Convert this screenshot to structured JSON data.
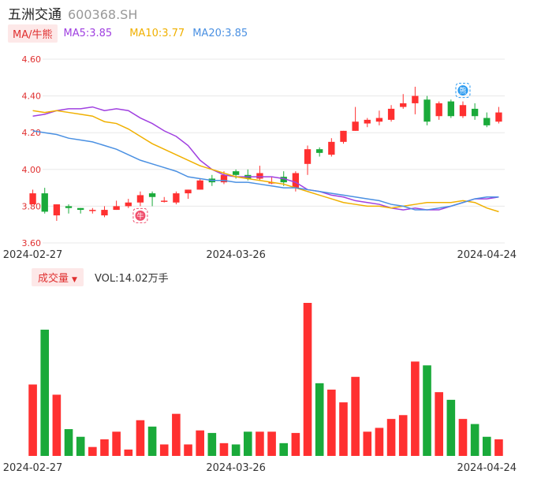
{
  "header": {
    "name": "五洲交通",
    "code": "600368.SH"
  },
  "ma_bar": {
    "toggle_label": "MA/牛熊",
    "ma5": "MA5:3.85",
    "ma10": "MA10:3.77",
    "ma20": "MA20:3.85"
  },
  "vol_bar": {
    "toggle_label": "成交量",
    "vol": "VOL:14.02万手"
  },
  "markers": {
    "bull": "牛",
    "bear": "熊"
  },
  "colors": {
    "up": "#ff3030",
    "down": "#1aaa3a",
    "ma5": "#a040e0",
    "ma10": "#f0b000",
    "ma20": "#4a90e2"
  },
  "chart_data": {
    "type": "candlestick",
    "y_ticks": [
      "4.60",
      "4.40",
      "4.20",
      "4.00",
      "3.80",
      "3.60"
    ],
    "ylim": [
      3.6,
      4.6
    ],
    "x_ticks": [
      {
        "index": 0,
        "label": "2024-02-27"
      },
      {
        "index": 17,
        "label": "2024-03-26"
      },
      {
        "index": 38,
        "label": "2024-04-24"
      }
    ],
    "candles": [
      [
        3.81,
        3.87,
        3.89,
        3.81
      ],
      [
        3.87,
        3.77,
        3.9,
        3.76
      ],
      [
        3.75,
        3.81,
        3.81,
        3.72
      ],
      [
        3.8,
        3.79,
        3.81,
        3.76
      ],
      [
        3.79,
        3.78,
        3.79,
        3.76
      ],
      [
        3.78,
        3.78,
        3.79,
        3.76
      ],
      [
        3.75,
        3.78,
        3.8,
        3.74
      ],
      [
        3.78,
        3.8,
        3.83,
        3.78
      ],
      [
        3.8,
        3.82,
        3.84,
        3.79
      ],
      [
        3.82,
        3.86,
        3.88,
        3.8
      ],
      [
        3.87,
        3.85,
        3.88,
        3.8
      ],
      [
        3.83,
        3.83,
        3.85,
        3.82
      ],
      [
        3.82,
        3.87,
        3.88,
        3.81
      ],
      [
        3.87,
        3.89,
        3.89,
        3.84
      ],
      [
        3.89,
        3.94,
        3.95,
        3.89
      ],
      [
        3.95,
        3.93,
        3.97,
        3.91
      ],
      [
        3.93,
        3.97,
        3.99,
        3.92
      ],
      [
        3.99,
        3.97,
        4.0,
        3.95
      ],
      [
        3.97,
        3.95,
        4.0,
        3.94
      ],
      [
        3.95,
        3.98,
        4.02,
        3.94
      ],
      [
        3.93,
        3.93,
        3.96,
        3.92
      ],
      [
        3.96,
        3.93,
        3.99,
        3.91
      ],
      [
        3.9,
        3.98,
        3.99,
        3.88
      ],
      [
        4.03,
        4.11,
        4.13,
        3.97
      ],
      [
        4.11,
        4.09,
        4.12,
        4.07
      ],
      [
        4.08,
        4.15,
        4.17,
        4.07
      ],
      [
        4.15,
        4.21,
        4.21,
        4.14
      ],
      [
        4.21,
        4.26,
        4.34,
        4.21
      ],
      [
        4.25,
        4.27,
        4.28,
        4.23
      ],
      [
        4.26,
        4.28,
        4.32,
        4.24
      ],
      [
        4.27,
        4.33,
        4.35,
        4.26
      ],
      [
        4.34,
        4.36,
        4.41,
        4.33
      ],
      [
        4.36,
        4.4,
        4.45,
        4.3
      ],
      [
        4.38,
        4.26,
        4.4,
        4.24
      ],
      [
        4.29,
        4.36,
        4.37,
        4.27
      ],
      [
        4.37,
        4.29,
        4.38,
        4.28
      ],
      [
        4.29,
        4.35,
        4.37,
        4.28
      ],
      [
        4.33,
        4.29,
        4.36,
        4.27
      ],
      [
        4.28,
        4.24,
        4.31,
        4.23
      ],
      [
        4.26,
        4.31,
        4.34,
        4.25
      ]
    ],
    "ma5": [
      4.29,
      4.3,
      4.32,
      4.33,
      4.33,
      4.34,
      4.32,
      4.33,
      4.32,
      4.28,
      4.25,
      4.21,
      4.18,
      4.13,
      4.05,
      4.0,
      3.97,
      3.96,
      3.96,
      3.96,
      3.96,
      3.95,
      3.93,
      3.89,
      3.88,
      3.86,
      3.85,
      3.83,
      3.82,
      3.81,
      3.79,
      3.78,
      3.79,
      3.78,
      3.78,
      3.8,
      3.82,
      3.84,
      3.84,
      3.85
    ],
    "ma10": [
      4.32,
      4.31,
      4.32,
      4.31,
      4.3,
      4.29,
      4.26,
      4.25,
      4.22,
      4.18,
      4.14,
      4.11,
      4.08,
      4.05,
      4.02,
      4.0,
      3.98,
      3.96,
      3.95,
      3.94,
      3.93,
      3.92,
      3.9,
      3.88,
      3.86,
      3.84,
      3.82,
      3.81,
      3.8,
      3.8,
      3.79,
      3.8,
      3.81,
      3.82,
      3.82,
      3.82,
      3.83,
      3.82,
      3.79,
      3.77
    ],
    "ma20": [
      4.21,
      4.2,
      4.19,
      4.17,
      4.16,
      4.15,
      4.13,
      4.11,
      4.08,
      4.05,
      4.03,
      4.01,
      3.99,
      3.96,
      3.95,
      3.94,
      3.94,
      3.93,
      3.93,
      3.92,
      3.91,
      3.9,
      3.9,
      3.89,
      3.88,
      3.87,
      3.86,
      3.85,
      3.84,
      3.83,
      3.81,
      3.8,
      3.78,
      3.78,
      3.79,
      3.8,
      3.82,
      3.84,
      3.85,
      3.85
    ],
    "volumes": [
      5.6,
      9.9,
      4.8,
      2.1,
      1.5,
      0.7,
      1.3,
      1.9,
      0.5,
      2.8,
      2.3,
      0.9,
      3.3,
      0.9,
      2.0,
      1.8,
      1.0,
      0.9,
      1.9,
      1.9,
      1.9,
      1.0,
      1.8,
      12.0,
      5.7,
      5.2,
      4.2,
      6.2,
      1.9,
      2.2,
      2.9,
      3.2,
      7.4,
      7.1,
      5.0,
      4.4,
      2.9,
      2.5,
      1.5,
      1.3
    ]
  }
}
